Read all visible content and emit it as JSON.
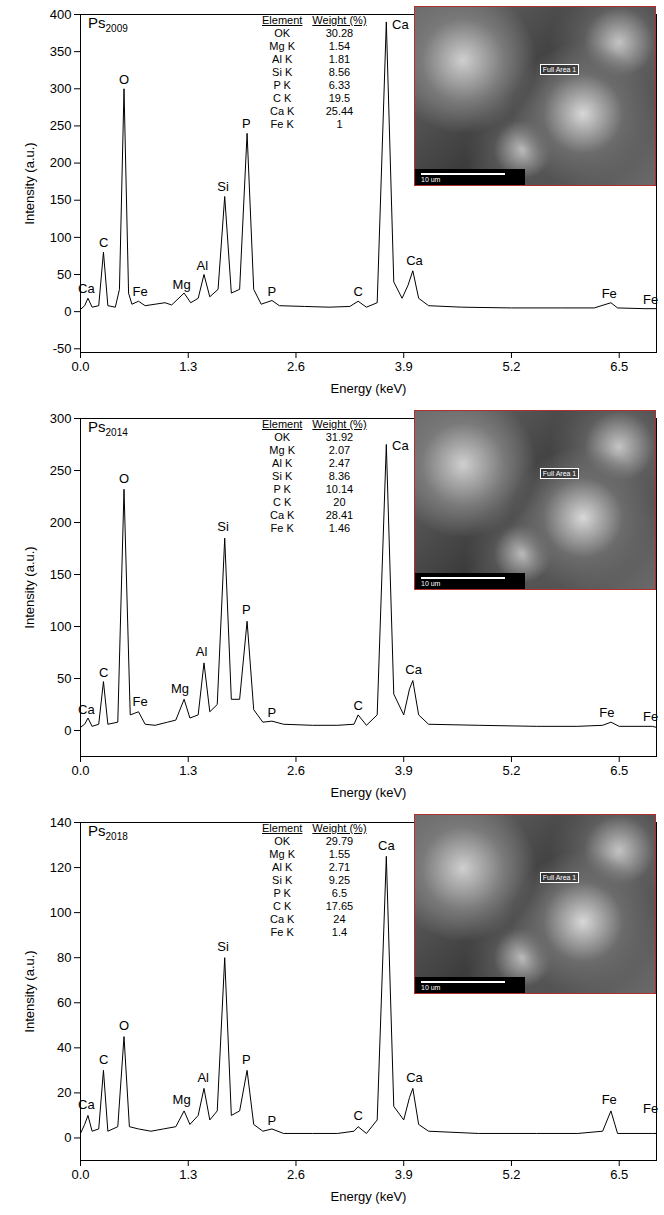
{
  "chart_data": [
    {
      "type": "line",
      "title": "Ps2009",
      "x_label": "Energy (keV)",
      "y_label": "Intensity (a.u.)",
      "color": "#000000",
      "grid": false,
      "xlim": [
        0,
        6.95
      ],
      "xticks": [
        {
          "value": 0,
          "label": "0.0"
        },
        1.3,
        2.6,
        3.9,
        5.2,
        6.5
      ],
      "ylim": [
        -55,
        400
      ],
      "yticks": [
        -50,
        0,
        50,
        100,
        150,
        200,
        250,
        300,
        350,
        400
      ],
      "x": [
        0,
        0.05,
        0.09,
        0.14,
        0.22,
        0.277,
        0.33,
        0.42,
        0.47,
        0.525,
        0.58,
        0.62,
        0.7,
        0.78,
        0.9,
        1.02,
        1.1,
        1.25,
        1.33,
        1.42,
        1.49,
        1.56,
        1.66,
        1.74,
        1.82,
        1.92,
        2.01,
        2.09,
        2.18,
        2.31,
        2.4,
        2.7,
        3.0,
        3.25,
        3.35,
        3.45,
        3.58,
        3.69,
        3.78,
        3.88,
        3.95,
        4.01,
        4.08,
        4.2,
        4.6,
        5.2,
        5.8,
        6.2,
        6.4,
        6.48,
        6.8,
        6.95
      ],
      "values": [
        3,
        8,
        18,
        6,
        8,
        80,
        8,
        6,
        30,
        300,
        25,
        10,
        14,
        8,
        10,
        12,
        9,
        25,
        12,
        18,
        50,
        20,
        30,
        155,
        25,
        30,
        240,
        30,
        10,
        15,
        8,
        7,
        6,
        7,
        14,
        6,
        12,
        390,
        40,
        18,
        35,
        55,
        18,
        8,
        6,
        5,
        5,
        5,
        12,
        5,
        4,
        4
      ],
      "annotations": [
        {
          "text": "Ca",
          "x": 0.07,
          "y": 22
        },
        {
          "text": "C",
          "x": 0.28,
          "y": 84
        },
        {
          "text": "O",
          "x": 0.525,
          "y": 304
        },
        {
          "text": "Fe",
          "x": 0.72,
          "y": 18
        },
        {
          "text": "Mg",
          "x": 1.22,
          "y": 28
        },
        {
          "text": "Al",
          "x": 1.47,
          "y": 54
        },
        {
          "text": "Si",
          "x": 1.72,
          "y": 160
        },
        {
          "text": "P",
          "x": 2.0,
          "y": 245
        },
        {
          "text": "P",
          "x": 2.31,
          "y": 19
        },
        {
          "text": "C",
          "x": 3.35,
          "y": 18
        },
        {
          "text": "Ca",
          "x": 3.86,
          "y": 378
        },
        {
          "text": "Ca",
          "x": 4.03,
          "y": 60
        },
        {
          "text": "Fe",
          "x": 6.38,
          "y": 16
        },
        {
          "text": "Fe",
          "x": 6.88,
          "y": 8
        }
      ],
      "table": {
        "columns": [
          "Element",
          "Weight (%)"
        ],
        "rows": [
          [
            "OK",
            "30.28"
          ],
          [
            "Mg K",
            "1.54"
          ],
          [
            "Al K",
            "1.81"
          ],
          [
            "Si K",
            "8.56"
          ],
          [
            "P K",
            "6.33"
          ],
          [
            "C K",
            "19.5"
          ],
          [
            "Ca K",
            "25.44"
          ],
          [
            "Fe K",
            "1"
          ]
        ]
      },
      "inset": {
        "label": "Full Area 1",
        "scale_bar": "10 um"
      }
    },
    {
      "type": "line",
      "title": "Ps2014",
      "x_label": "Energy (keV)",
      "y_label": "Intensity (a.u.)",
      "color": "#000000",
      "grid": false,
      "xlim": [
        0,
        6.95
      ],
      "xticks": [
        {
          "value": 0,
          "label": "0.0"
        },
        1.3,
        2.6,
        3.9,
        5.2,
        6.5
      ],
      "ylim": [
        -25,
        300
      ],
      "yticks": [
        0,
        50,
        100,
        150,
        200,
        250,
        300
      ],
      "x": [
        0,
        0.05,
        0.09,
        0.14,
        0.22,
        0.277,
        0.33,
        0.45,
        0.525,
        0.6,
        0.7,
        0.78,
        0.9,
        1.05,
        1.15,
        1.25,
        1.32,
        1.42,
        1.49,
        1.56,
        1.65,
        1.74,
        1.82,
        1.92,
        2.01,
        2.09,
        2.2,
        2.31,
        2.45,
        2.8,
        3.1,
        3.3,
        3.35,
        3.45,
        3.58,
        3.69,
        3.78,
        3.9,
        3.97,
        4.01,
        4.08,
        4.2,
        4.8,
        5.5,
        6.0,
        6.3,
        6.4,
        6.5,
        6.9,
        6.95
      ],
      "values": [
        3,
        6,
        12,
        4,
        6,
        47,
        6,
        8,
        232,
        15,
        18,
        6,
        5,
        8,
        10,
        30,
        12,
        15,
        65,
        18,
        25,
        185,
        30,
        30,
        105,
        20,
        8,
        9,
        6,
        5,
        5,
        6,
        15,
        5,
        15,
        275,
        35,
        15,
        40,
        48,
        15,
        6,
        5,
        4,
        4,
        5,
        8,
        4,
        4,
        3
      ],
      "annotations": [
        {
          "text": "Ca",
          "x": 0.07,
          "y": 14
        },
        {
          "text": "C",
          "x": 0.28,
          "y": 50
        },
        {
          "text": "O",
          "x": 0.525,
          "y": 236
        },
        {
          "text": "Fe",
          "x": 0.72,
          "y": 22
        },
        {
          "text": "Mg",
          "x": 1.2,
          "y": 34
        },
        {
          "text": "Al",
          "x": 1.46,
          "y": 70
        },
        {
          "text": "Si",
          "x": 1.72,
          "y": 190
        },
        {
          "text": "P",
          "x": 2.0,
          "y": 110
        },
        {
          "text": "P",
          "x": 2.31,
          "y": 11
        },
        {
          "text": "C",
          "x": 3.35,
          "y": 18
        },
        {
          "text": "Ca",
          "x": 3.86,
          "y": 268
        },
        {
          "text": "Ca",
          "x": 4.02,
          "y": 52
        },
        {
          "text": "Fe",
          "x": 6.35,
          "y": 11
        },
        {
          "text": "Fe",
          "x": 6.88,
          "y": 7
        }
      ],
      "table": {
        "columns": [
          "Element",
          "Weight (%)"
        ],
        "rows": [
          [
            "OK",
            "31.92"
          ],
          [
            "Mg K",
            "2.07"
          ],
          [
            "Al K",
            "2.47"
          ],
          [
            "Si K",
            "8.36"
          ],
          [
            "P K",
            "10.14"
          ],
          [
            "C K",
            "20"
          ],
          [
            "Ca K",
            "28.41"
          ],
          [
            "Fe K",
            "1.46"
          ]
        ]
      },
      "inset": {
        "label": "Full Area 1",
        "scale_bar": "10 um"
      }
    },
    {
      "type": "line",
      "title": "Ps2018",
      "x_label": "Energy (keV)",
      "y_label": "Intensity (a.u.)",
      "color": "#000000",
      "grid": false,
      "xlim": [
        0,
        6.95
      ],
      "xticks": [
        {
          "value": 0,
          "label": "0.0"
        },
        1.3,
        2.6,
        3.9,
        5.2,
        6.5
      ],
      "ylim": [
        -10,
        140
      ],
      "yticks": [
        0,
        20,
        40,
        60,
        80,
        100,
        120,
        140
      ],
      "x": [
        0,
        0.05,
        0.09,
        0.14,
        0.22,
        0.277,
        0.33,
        0.45,
        0.525,
        0.59,
        0.7,
        0.85,
        1.0,
        1.15,
        1.25,
        1.32,
        1.42,
        1.49,
        1.56,
        1.65,
        1.74,
        1.82,
        1.92,
        2.01,
        2.09,
        2.2,
        2.31,
        2.45,
        2.8,
        3.1,
        3.3,
        3.35,
        3.45,
        3.58,
        3.69,
        3.78,
        3.9,
        3.97,
        4.01,
        4.08,
        4.2,
        4.8,
        5.5,
        6.0,
        6.3,
        6.4,
        6.48,
        6.9,
        6.95
      ],
      "values": [
        2,
        6,
        10,
        3,
        4,
        30,
        3,
        5,
        45,
        5,
        4,
        3,
        4,
        5,
        12,
        6,
        10,
        22,
        8,
        12,
        80,
        10,
        12,
        30,
        6,
        3,
        4,
        2,
        2,
        2,
        3,
        5,
        2,
        8,
        125,
        14,
        8,
        18,
        22,
        6,
        3,
        2,
        2,
        2,
        3,
        12,
        2,
        2,
        2
      ],
      "annotations": [
        {
          "text": "Ca",
          "x": 0.07,
          "y": 12
        },
        {
          "text": "C",
          "x": 0.28,
          "y": 32
        },
        {
          "text": "O",
          "x": 0.525,
          "y": 47
        },
        {
          "text": "Mg",
          "x": 1.22,
          "y": 14
        },
        {
          "text": "Al",
          "x": 1.48,
          "y": 24
        },
        {
          "text": "Si",
          "x": 1.72,
          "y": 82
        },
        {
          "text": "P",
          "x": 2.0,
          "y": 32
        },
        {
          "text": "P",
          "x": 2.31,
          "y": 5
        },
        {
          "text": "C",
          "x": 3.35,
          "y": 7
        },
        {
          "text": "Ca",
          "x": 3.69,
          "y": 127
        },
        {
          "text": "Ca",
          "x": 4.03,
          "y": 24
        },
        {
          "text": "Fe",
          "x": 6.38,
          "y": 14
        },
        {
          "text": "Fe",
          "x": 6.88,
          "y": 10
        }
      ],
      "table": {
        "columns": [
          "Element",
          "Weight (%)"
        ],
        "rows": [
          [
            "OK",
            "29.79"
          ],
          [
            "Mg K",
            "1.55"
          ],
          [
            "Al K",
            "2.71"
          ],
          [
            "Si K",
            "9.25"
          ],
          [
            "P K",
            "6.5"
          ],
          [
            "C K",
            "17.65"
          ],
          [
            "Ca K",
            "24"
          ],
          [
            "Fe K",
            "1.4"
          ]
        ]
      },
      "inset": {
        "label": "Full Area 1",
        "scale_bar": "10 um"
      }
    }
  ]
}
